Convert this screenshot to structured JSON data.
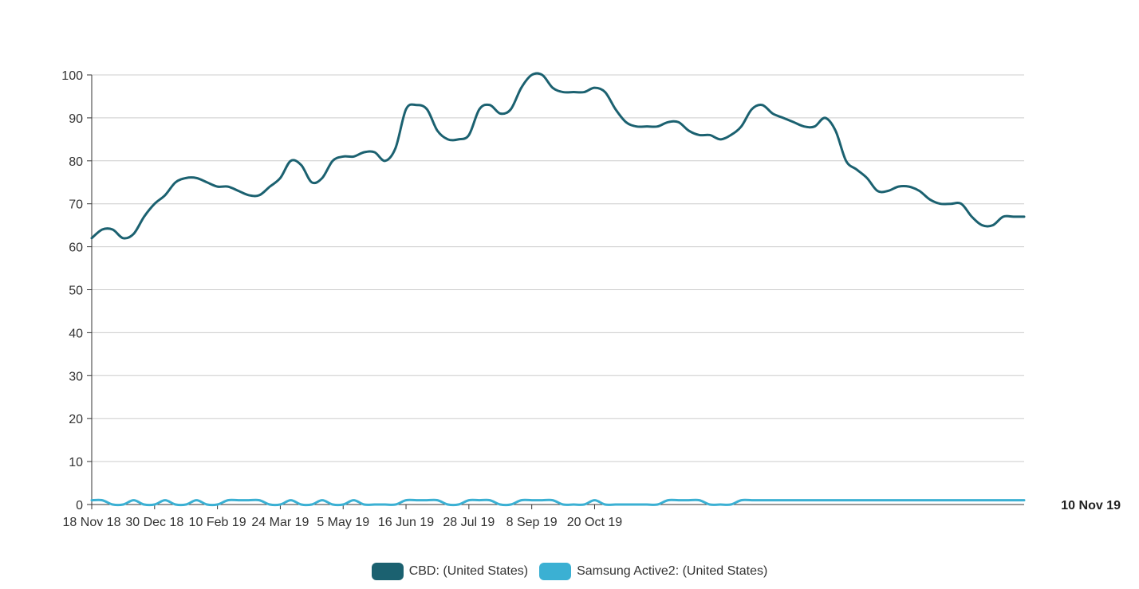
{
  "chart_data": {
    "type": "line",
    "x_start": "18 Nov 18",
    "x_interval": "weekly",
    "x_tick_labels": [
      "18 Nov 18",
      "30 Dec 18",
      "10 Feb 19",
      "24 Mar 19",
      "5 May 19",
      "16 Jun 19",
      "28 Jul 19",
      "8 Sep 19",
      "20 Oct 19"
    ],
    "end_label": "10 Nov 19",
    "ylim": [
      0,
      100
    ],
    "y_ticks": [
      0,
      10,
      20,
      30,
      40,
      50,
      60,
      70,
      80,
      90,
      100
    ],
    "grid": true,
    "legend_position": "bottom",
    "series": [
      {
        "name": "CBD: (United States)",
        "color": "#1b6170",
        "values": [
          62,
          64,
          64,
          62,
          63,
          67,
          70,
          72,
          75,
          76,
          76,
          75,
          74,
          74,
          73,
          72,
          72,
          74,
          76,
          80,
          79,
          75,
          76,
          80,
          81,
          81,
          82,
          82,
          80,
          83,
          92,
          93,
          92,
          87,
          85,
          85,
          86,
          92,
          93,
          91,
          92,
          97,
          100,
          100,
          97,
          96,
          96,
          96,
          97,
          96,
          92,
          89,
          88,
          88,
          88,
          89,
          89,
          87,
          86,
          86,
          85,
          86,
          88,
          92,
          93,
          91,
          90,
          89,
          88,
          88,
          90,
          87,
          80,
          78,
          76,
          73,
          73,
          74,
          74,
          73,
          71,
          70,
          70,
          70,
          67,
          65,
          65,
          67,
          67,
          67
        ]
      },
      {
        "name": "Samsung Active2: (United States)",
        "color": "#3bb0d3",
        "values": [
          1,
          1,
          0,
          0,
          1,
          0,
          0,
          1,
          0,
          0,
          1,
          0,
          0,
          1,
          1,
          1,
          1,
          0,
          0,
          1,
          0,
          0,
          1,
          0,
          0,
          1,
          0,
          0,
          0,
          0,
          1,
          1,
          1,
          1,
          0,
          0,
          1,
          1,
          1,
          0,
          0,
          1,
          1,
          1,
          1,
          0,
          0,
          0,
          1,
          0,
          0,
          0,
          0,
          0,
          0,
          1,
          1,
          1,
          1,
          0,
          0,
          0,
          1,
          1,
          1,
          1,
          1,
          1,
          1,
          1,
          1,
          1,
          1,
          1,
          1,
          1,
          1,
          1,
          1,
          1,
          1,
          1,
          1,
          1,
          1,
          1,
          1,
          1,
          1,
          1
        ]
      }
    ]
  }
}
